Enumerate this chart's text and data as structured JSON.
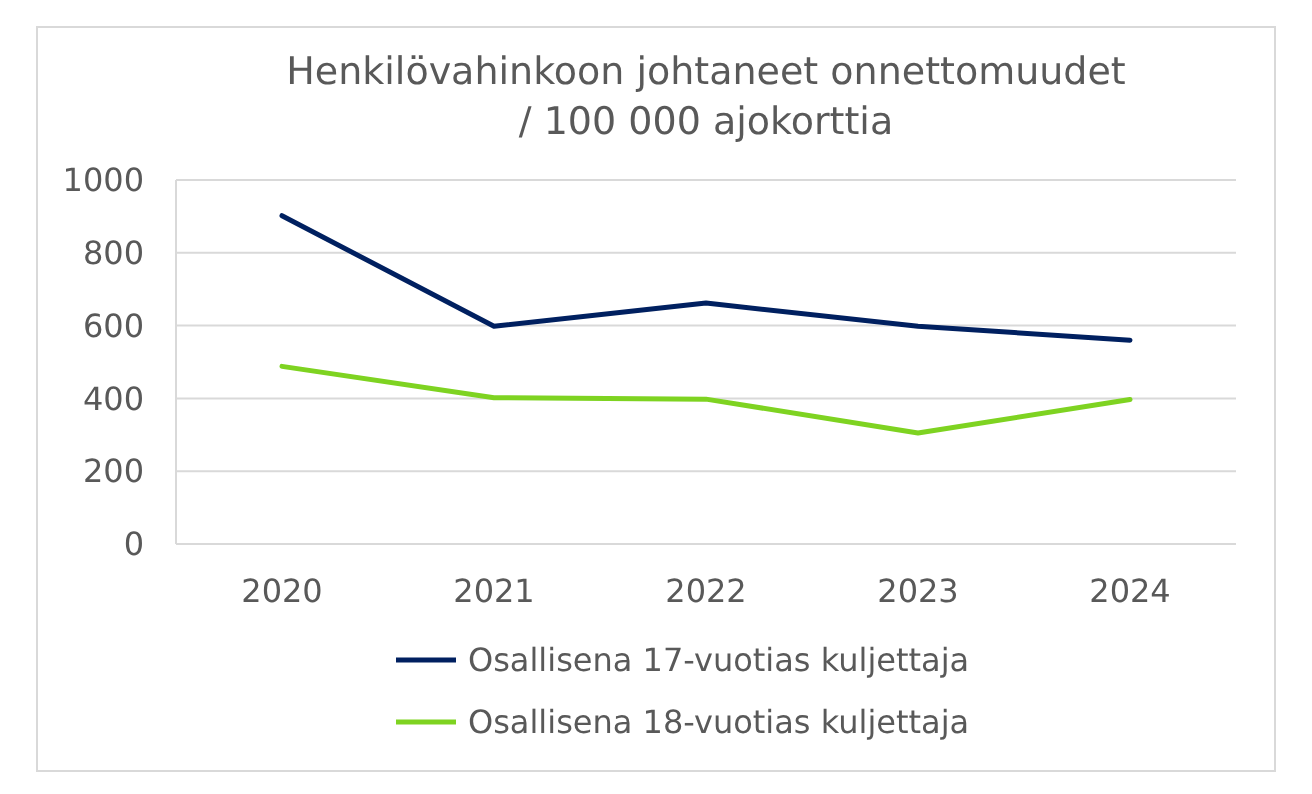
{
  "chart_data": {
    "type": "line",
    "title": "Henkilövahinkoon johtaneet onnettomuudet\n/ 100 000 ajokorttia",
    "categories": [
      "2020",
      "2021",
      "2022",
      "2023",
      "2024"
    ],
    "series": [
      {
        "name": "Osallisena 17-vuotias kuljettaja",
        "color": "#002060",
        "values": [
          902,
          598,
          662,
          598,
          560
        ]
      },
      {
        "name": "Osallisena 18-vuotias kuljettaja",
        "color": "#7ed321",
        "values": [
          488,
          402,
          398,
          305,
          397
        ]
      }
    ],
    "ylim": [
      0,
      1000
    ],
    "yticks": [
      0,
      200,
      400,
      600,
      800,
      1000
    ],
    "grid": "y",
    "legend": "bottom",
    "marker": "none",
    "line_style": "solid"
  }
}
